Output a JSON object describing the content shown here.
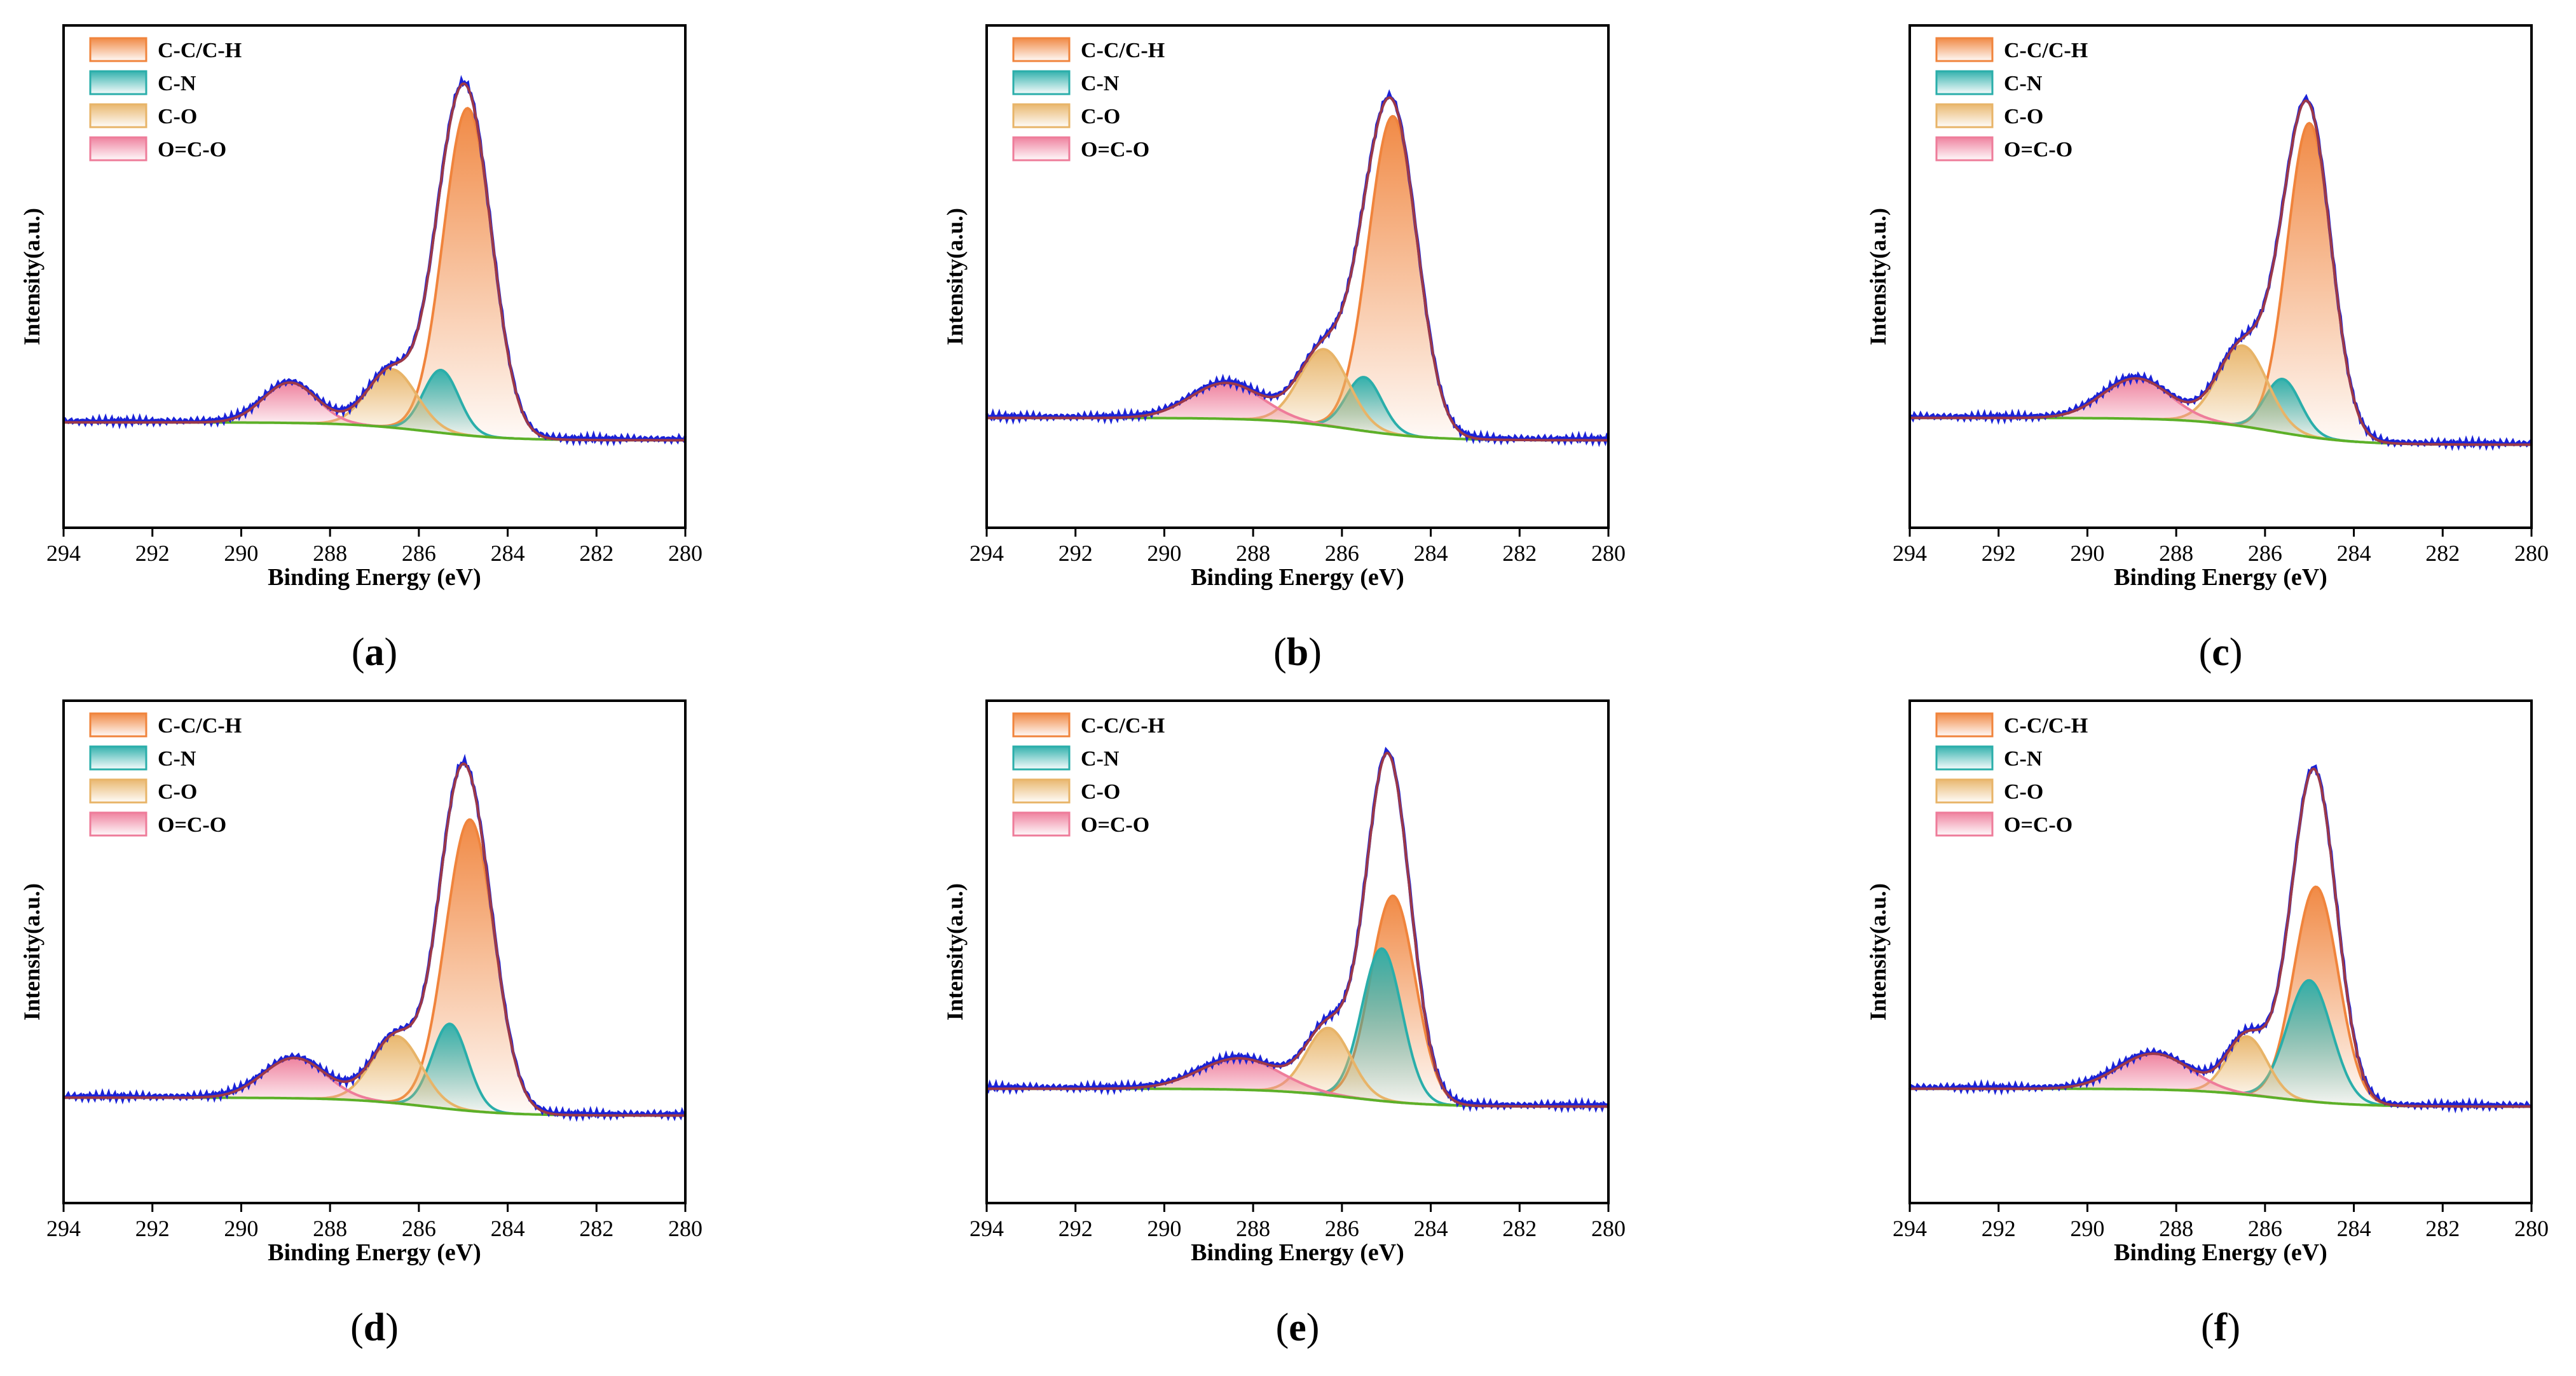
{
  "figure": {
    "legend": [
      "C-C/C-H",
      "C-N",
      "C-O",
      "O=C-O"
    ],
    "colors": {
      "cc": "#f0843c",
      "cn": "#2aaeaa",
      "co": "#e8b468",
      "occo": "#ee7c9a",
      "envelope": "#9c3848",
      "raw": "#1a22d8",
      "background": "#5cb028"
    }
  },
  "chart_data": [
    {
      "panel": "(a)",
      "type": "line",
      "xlabel": "Binding Energy (eV)",
      "ylabel": "Intensity(a.u.)",
      "xlim": [
        294,
        280
      ],
      "xticks": [
        294,
        292,
        290,
        288,
        286,
        284,
        282,
        280
      ],
      "ylim": [
        0,
        100
      ],
      "bg_left": 15,
      "bg_right": 11,
      "series": [
        {
          "name": "C-C/C-H",
          "center": 284.9,
          "sigma": 0.55,
          "amp": 73
        },
        {
          "name": "C-N",
          "center": 285.5,
          "sigma": 0.4,
          "amp": 14
        },
        {
          "name": "C-O",
          "center": 286.6,
          "sigma": 0.55,
          "amp": 13
        },
        {
          "name": "O=C-O",
          "center": 288.9,
          "sigma": 0.6,
          "amp": 9
        }
      ]
    },
    {
      "panel": "(b)",
      "type": "line",
      "xlabel": "Binding Energy (eV)",
      "ylabel": "Intensity(a.u.)",
      "xlim": [
        294,
        280
      ],
      "xticks": [
        294,
        292,
        290,
        288,
        286,
        284,
        282,
        280
      ],
      "ylim": [
        0,
        100
      ],
      "bg_left": 16,
      "bg_right": 11,
      "series": [
        {
          "name": "C-C/C-H",
          "center": 284.85,
          "sigma": 0.55,
          "amp": 71
        },
        {
          "name": "C-N",
          "center": 285.5,
          "sigma": 0.4,
          "amp": 12
        },
        {
          "name": "C-O",
          "center": 286.4,
          "sigma": 0.55,
          "amp": 17
        },
        {
          "name": "O=C-O",
          "center": 288.6,
          "sigma": 0.8,
          "amp": 8
        }
      ]
    },
    {
      "panel": "(c)",
      "type": "line",
      "xlabel": "Binding Energy (eV)",
      "ylabel": "Intensity(a.u.)",
      "xlim": [
        294,
        280
      ],
      "xticks": [
        294,
        292,
        290,
        288,
        286,
        284,
        282,
        280
      ],
      "ylim": [
        0,
        100
      ],
      "bg_left": 16,
      "bg_right": 10,
      "series": [
        {
          "name": "C-C/C-H",
          "center": 285.0,
          "sigma": 0.5,
          "amp": 70
        },
        {
          "name": "C-N",
          "center": 285.6,
          "sigma": 0.4,
          "amp": 12
        },
        {
          "name": "C-O",
          "center": 286.5,
          "sigma": 0.55,
          "amp": 18
        },
        {
          "name": "O=C-O",
          "center": 288.9,
          "sigma": 0.75,
          "amp": 9
        }
      ]
    },
    {
      "panel": "(d)",
      "type": "line",
      "xlabel": "Binding Energy (eV)",
      "ylabel": "Intensity(a.u.)",
      "xlim": [
        294,
        280
      ],
      "xticks": [
        294,
        292,
        290,
        288,
        286,
        284,
        282,
        280
      ],
      "ylim": [
        0,
        100
      ],
      "bg_left": 15,
      "bg_right": 11,
      "series": [
        {
          "name": "C-C/C-H",
          "center": 284.85,
          "sigma": 0.55,
          "amp": 65
        },
        {
          "name": "C-N",
          "center": 285.3,
          "sigma": 0.4,
          "amp": 19
        },
        {
          "name": "C-O",
          "center": 286.5,
          "sigma": 0.55,
          "amp": 15
        },
        {
          "name": "O=C-O",
          "center": 288.8,
          "sigma": 0.7,
          "amp": 9
        }
      ]
    },
    {
      "panel": "(e)",
      "type": "line",
      "xlabel": "Binding Energy (eV)",
      "ylabel": "Intensity(a.u.)",
      "xlim": [
        294,
        280
      ],
      "xticks": [
        294,
        292,
        290,
        288,
        286,
        284,
        282,
        280
      ],
      "ylim": [
        0,
        100
      ],
      "bg_left": 17,
      "bg_right": 13,
      "series": [
        {
          "name": "C-C/C-H",
          "center": 284.85,
          "sigma": 0.5,
          "amp": 46
        },
        {
          "name": "C-N",
          "center": 285.1,
          "sigma": 0.45,
          "amp": 34
        },
        {
          "name": "C-O",
          "center": 286.3,
          "sigma": 0.5,
          "amp": 15
        },
        {
          "name": "O=C-O",
          "center": 288.3,
          "sigma": 0.9,
          "amp": 7
        }
      ]
    },
    {
      "panel": "(f)",
      "type": "line",
      "xlabel": "Binding Energy (eV)",
      "ylabel": "Intensity(a.u.)",
      "xlim": [
        294,
        280
      ],
      "xticks": [
        294,
        292,
        290,
        288,
        286,
        284,
        282,
        280
      ],
      "ylim": [
        0,
        100
      ],
      "bg_left": 17,
      "bg_right": 13,
      "series": [
        {
          "name": "C-C/C-H",
          "center": 284.85,
          "sigma": 0.5,
          "amp": 48
        },
        {
          "name": "C-N",
          "center": 285.0,
          "sigma": 0.5,
          "amp": 27
        },
        {
          "name": "C-O",
          "center": 286.4,
          "sigma": 0.45,
          "amp": 13
        },
        {
          "name": "O=C-O",
          "center": 288.5,
          "sigma": 0.8,
          "amp": 8
        }
      ]
    }
  ]
}
